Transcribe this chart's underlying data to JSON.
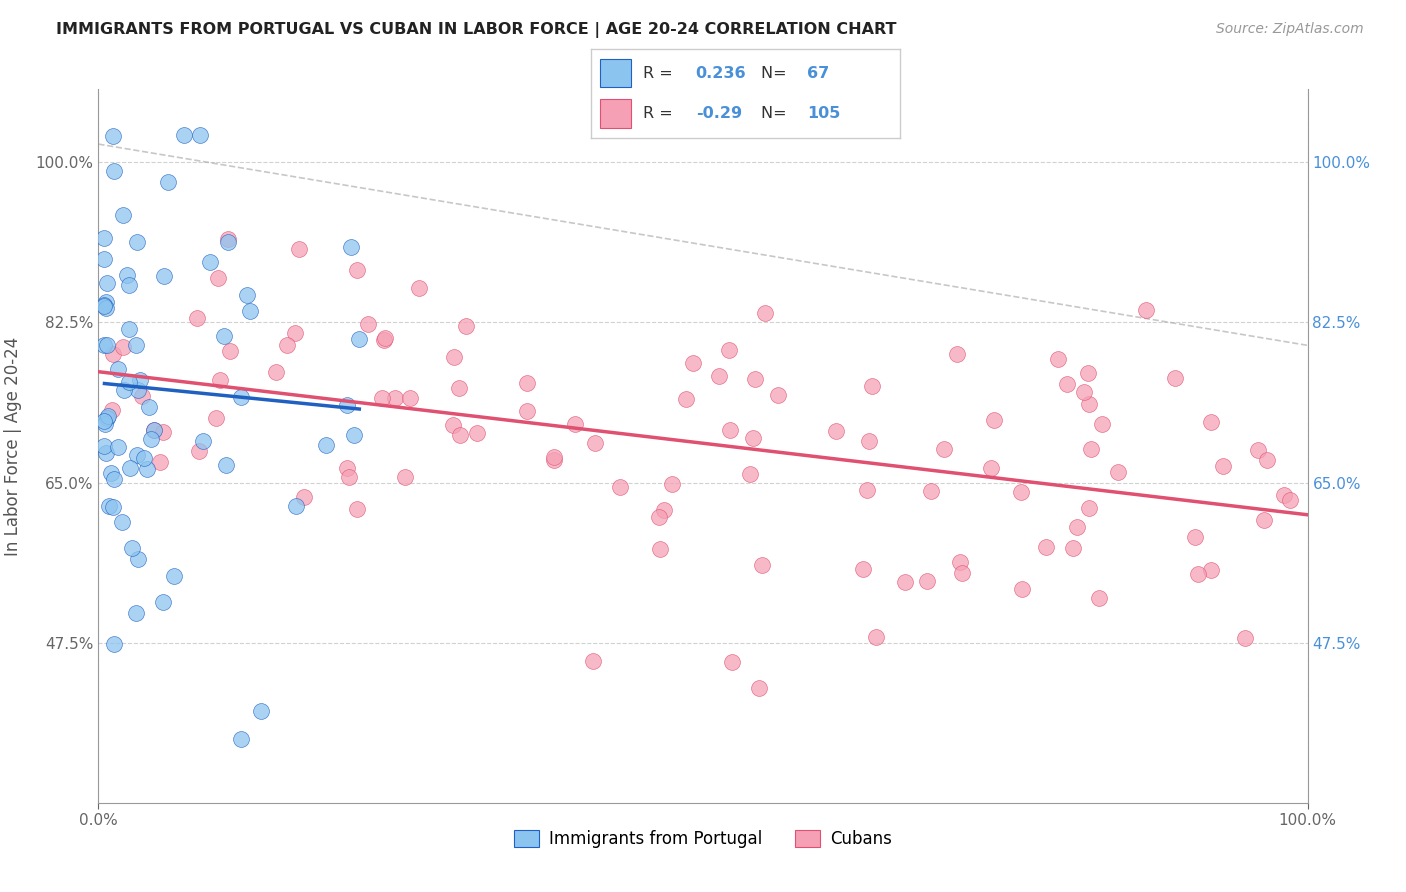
{
  "title": "IMMIGRANTS FROM PORTUGAL VS CUBAN IN LABOR FORCE | AGE 20-24 CORRELATION CHART",
  "source": "Source: ZipAtlas.com",
  "ylabel": "In Labor Force | Age 20-24",
  "legend_labels": [
    "Immigrants from Portugal",
    "Cubans"
  ],
  "r_portugal": 0.236,
  "n_portugal": 67,
  "r_cuban": -0.29,
  "n_cuban": 105,
  "xlim": [
    0.0,
    1.0
  ],
  "ylim": [
    0.3,
    1.08
  ],
  "yticks": [
    0.475,
    0.65,
    0.825,
    1.0
  ],
  "xticks": [
    0.0,
    1.0
  ],
  "color_portugal": "#8CC4F0",
  "color_cuban": "#F5A0B5",
  "trendline_portugal": "#2060C0",
  "trendline_cuban": "#E05070",
  "ref_line_color": "#b0b0b0",
  "background": "#ffffff",
  "grid_color": "#cccccc",
  "right_tick_color": "#4a90d9",
  "title_color": "#222222",
  "source_color": "#999999",
  "seed_portugal": 42,
  "seed_cuban": 99
}
